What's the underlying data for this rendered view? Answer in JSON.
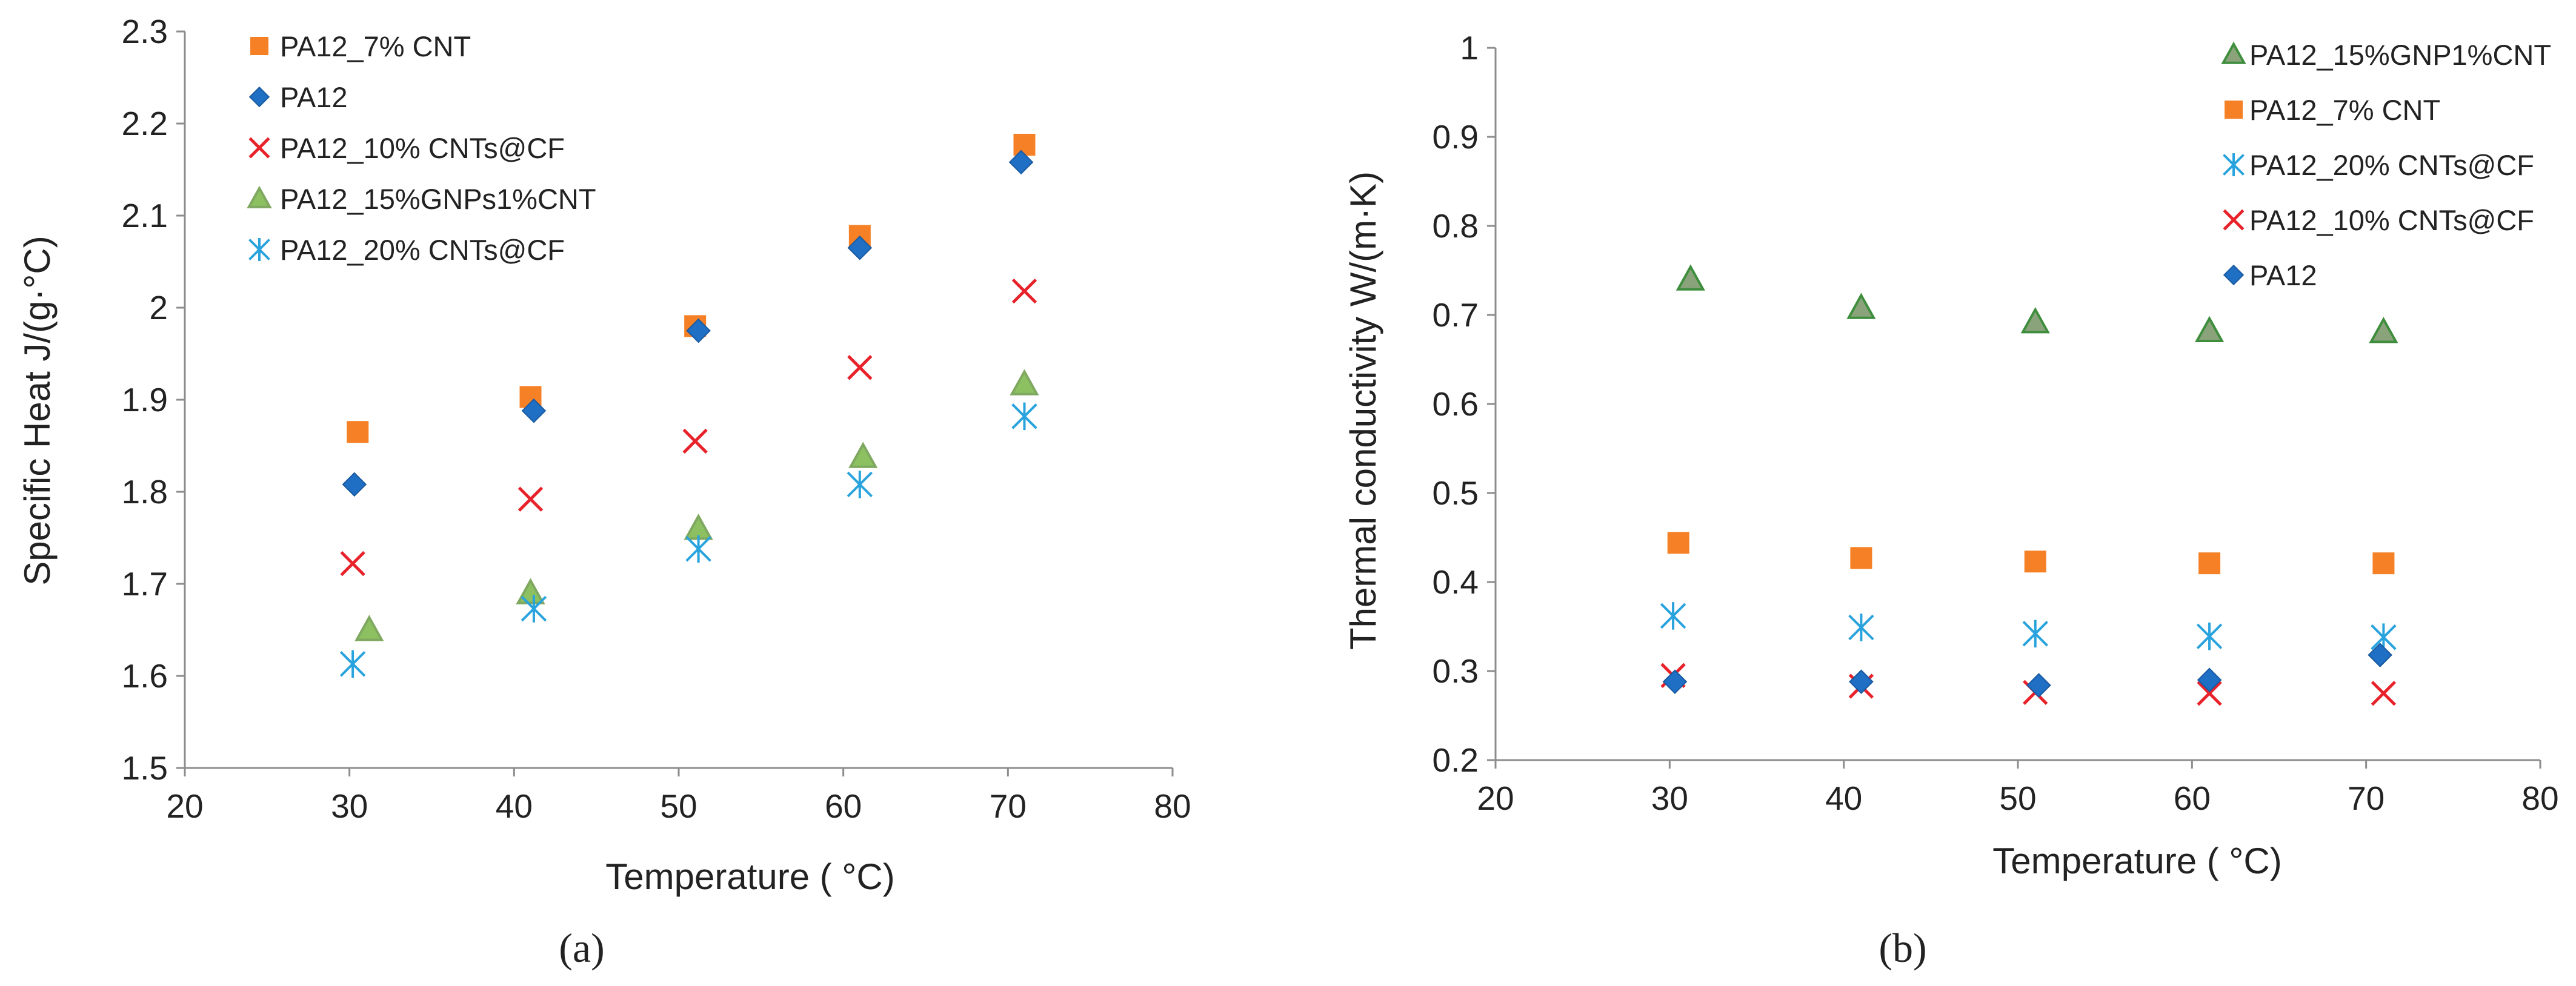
{
  "chart_data": [
    {
      "type": "scatter",
      "caption": "(a)",
      "xlabel": "Temperature ( °C)",
      "ylabel": "Specific Heat    J/(g·°C)",
      "xlim": [
        20,
        80
      ],
      "ylim": [
        1.5,
        2.3
      ],
      "xticks": [
        20,
        30,
        40,
        50,
        60,
        70,
        80
      ],
      "yticks": [
        1.5,
        1.6,
        1.7,
        1.8,
        1.9,
        2.0,
        2.1,
        2.2,
        2.3
      ],
      "ytick_labels": [
        "1.5",
        "1.6",
        "1.7",
        "1.8",
        "1.9",
        "2",
        "2.1",
        "2.2",
        "2.3"
      ],
      "grid": false,
      "legend_position": "top-left",
      "series": [
        {
          "name": "PA12_7% CNT",
          "marker": "square",
          "color": "#F58025",
          "points": [
            [
              30.5,
              1.865
            ],
            [
              41,
              1.903
            ],
            [
              51,
              1.98
            ],
            [
              61,
              2.078
            ],
            [
              71,
              2.177
            ]
          ]
        },
        {
          "name": "PA12",
          "marker": "diamond",
          "color": "#1F6FC5",
          "points": [
            [
              30.3,
              1.808
            ],
            [
              41.2,
              1.888
            ],
            [
              51.2,
              1.975
            ],
            [
              61,
              2.065
            ],
            [
              70.8,
              2.158
            ]
          ]
        },
        {
          "name": "PA12_10% CNTs@CF",
          "marker": "x",
          "color": "#E8222A",
          "points": [
            [
              30.2,
              1.722
            ],
            [
              41,
              1.792
            ],
            [
              51,
              1.855
            ],
            [
              61,
              1.935
            ],
            [
              71,
              2.018
            ]
          ]
        },
        {
          "name": "PA12_15%GNPs1%CNT",
          "marker": "triangle",
          "color": "#8CC060",
          "stroke": "#7FA860",
          "points": [
            [
              31.2,
              1.65
            ],
            [
              41,
              1.69
            ],
            [
              51.2,
              1.76
            ],
            [
              61.2,
              1.838
            ],
            [
              71,
              1.917
            ]
          ]
        },
        {
          "name": "PA12_20% CNTs@CF",
          "marker": "asterisk",
          "color": "#29A3DD",
          "points": [
            [
              30.2,
              1.613
            ],
            [
              41.2,
              1.673
            ],
            [
              51.2,
              1.738
            ],
            [
              61,
              1.808
            ],
            [
              71,
              1.882
            ]
          ]
        }
      ]
    },
    {
      "type": "scatter",
      "caption": "(b)",
      "xlabel": "Temperature ( °C)",
      "ylabel": "Thermal conductivity   W/(m·K)",
      "xlim": [
        20,
        80
      ],
      "ylim": [
        0.2,
        1.0
      ],
      "xticks": [
        20,
        30,
        40,
        50,
        60,
        70,
        80
      ],
      "yticks": [
        0.2,
        0.3,
        0.4,
        0.5,
        0.6,
        0.7,
        0.8,
        0.9,
        1.0
      ],
      "ytick_labels": [
        "0.2",
        "0.3",
        "0.4",
        "0.5",
        "0.6",
        "0.7",
        "0.8",
        "0.9",
        "1"
      ],
      "grid": false,
      "legend_position": "top-right",
      "series": [
        {
          "name": "PA12_15%GNP1%CNT",
          "marker": "triangle",
          "color": "#8AA37A",
          "stroke": "#3E8E3E",
          "points": [
            [
              31.2,
              0.74
            ],
            [
              41,
              0.708
            ],
            [
              51,
              0.692
            ],
            [
              61,
              0.682
            ],
            [
              71,
              0.681
            ]
          ]
        },
        {
          "name": "PA12_7% CNT",
          "marker": "square",
          "color": "#F58025",
          "points": [
            [
              30.5,
              0.444
            ],
            [
              41,
              0.427
            ],
            [
              51,
              0.423
            ],
            [
              61,
              0.421
            ],
            [
              71,
              0.421
            ]
          ]
        },
        {
          "name": "PA12_20% CNTs@CF",
          "marker": "asterisk",
          "color": "#29A3DD",
          "points": [
            [
              30.2,
              0.362
            ],
            [
              41,
              0.349
            ],
            [
              51,
              0.342
            ],
            [
              61,
              0.339
            ],
            [
              71,
              0.338
            ]
          ]
        },
        {
          "name": "PA12_10% CNTs@CF",
          "marker": "x",
          "color": "#E8222A",
          "points": [
            [
              30.2,
              0.295
            ],
            [
              41,
              0.283
            ],
            [
              51,
              0.276
            ],
            [
              61,
              0.275
            ],
            [
              71,
              0.275
            ]
          ]
        },
        {
          "name": "PA12",
          "marker": "diamond",
          "color": "#1F6FC5",
          "points": [
            [
              30.3,
              0.288
            ],
            [
              41,
              0.288
            ],
            [
              51.2,
              0.284
            ],
            [
              61,
              0.29
            ],
            [
              70.8,
              0.318
            ]
          ]
        }
      ]
    }
  ]
}
